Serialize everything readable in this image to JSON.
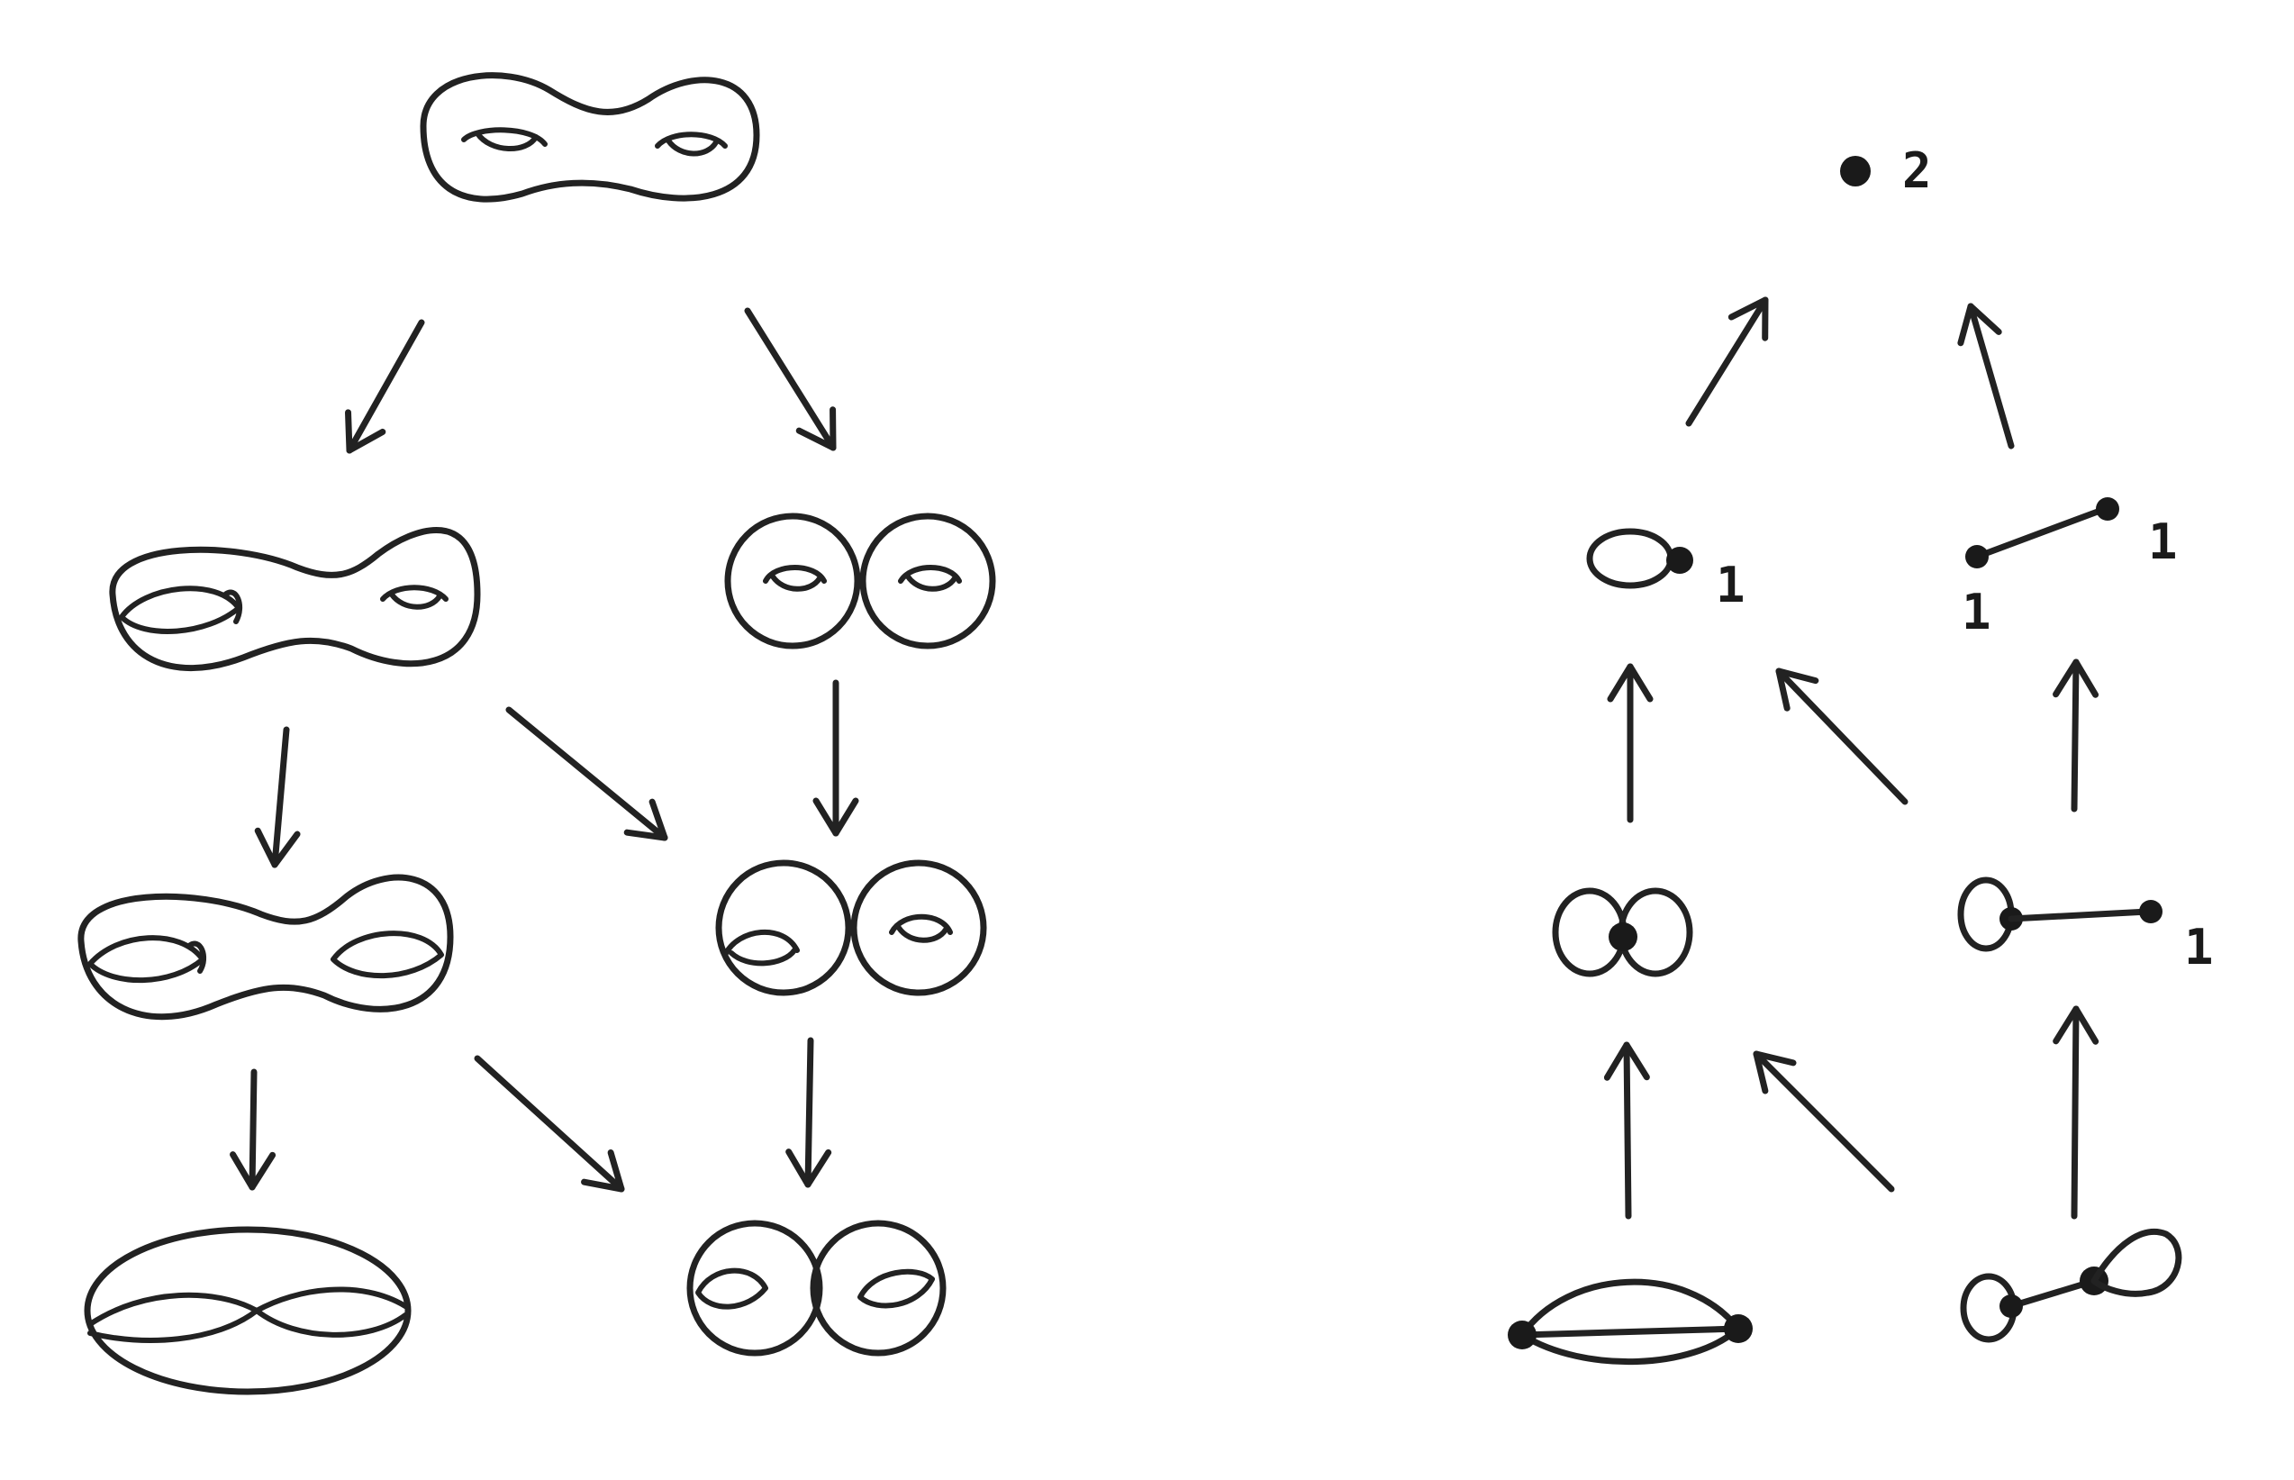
{
  "colors": {
    "ink": "#222222",
    "background": "#ffffff"
  },
  "graph_labels": {
    "top_vertex": "2",
    "loop_vertex": "1",
    "edge_left_vertex": "1",
    "edge_right_vertex": "1",
    "loop_edge_end": "1"
  }
}
